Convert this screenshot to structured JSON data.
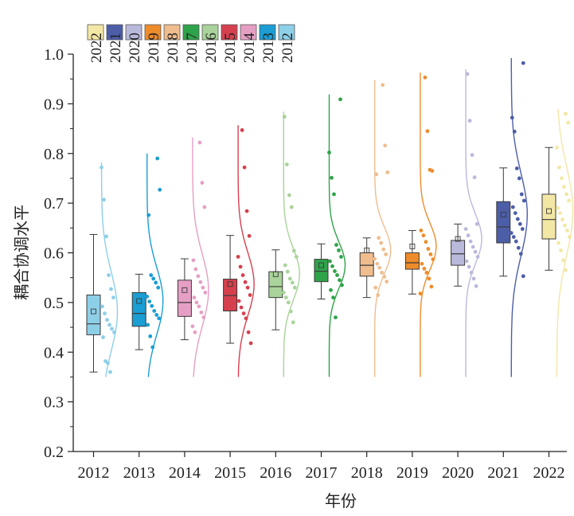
{
  "chart_data": {
    "type": "box",
    "xlabel": "年份",
    "ylabel": "耦合协调水平",
    "ylim": [
      0.2,
      1.0
    ],
    "yticks": [
      "0.2",
      "0.3",
      "0.4",
      "0.5",
      "0.6",
      "0.7",
      "0.8",
      "0.9",
      "1.0"
    ],
    "legend": {
      "placement": "top-left",
      "entries": [
        "2022",
        "2021",
        "2020",
        "2019",
        "2018",
        "2017",
        "2016",
        "2015",
        "2014",
        "2013",
        "2012"
      ]
    },
    "series": [
      {
        "name": "2012",
        "color": "#8ECFE8",
        "min": 0.36,
        "q1": 0.435,
        "median": 0.457,
        "q3": 0.515,
        "max": 0.637,
        "mean": 0.482,
        "points": [
          0.772,
          0.707,
          0.633,
          0.555,
          0.527,
          0.51,
          0.492,
          0.478,
          0.465,
          0.455,
          0.447,
          0.44,
          0.43,
          0.382,
          0.378,
          0.36
        ]
      },
      {
        "name": "2013",
        "color": "#1A9ED4",
        "min": 0.405,
        "q1": 0.452,
        "median": 0.478,
        "q3": 0.52,
        "max": 0.557,
        "mean": 0.503,
        "points": [
          0.79,
          0.727,
          0.676,
          0.555,
          0.548,
          0.54,
          0.53,
          0.512,
          0.502,
          0.493,
          0.483,
          0.475,
          0.468,
          0.455,
          0.432,
          0.41
        ]
      },
      {
        "name": "2014",
        "color": "#E69FC4",
        "min": 0.425,
        "q1": 0.472,
        "median": 0.5,
        "q3": 0.545,
        "max": 0.588,
        "mean": 0.525,
        "points": [
          0.822,
          0.741,
          0.692,
          0.585,
          0.567,
          0.553,
          0.541,
          0.53,
          0.52,
          0.51,
          0.5,
          0.492,
          0.48,
          0.47,
          0.452,
          0.44
        ]
      },
      {
        "name": "2015",
        "color": "#D6404E",
        "min": 0.418,
        "q1": 0.483,
        "median": 0.514,
        "q3": 0.547,
        "max": 0.635,
        "mean": 0.537,
        "points": [
          0.847,
          0.772,
          0.684,
          0.634,
          0.592,
          0.572,
          0.555,
          0.541,
          0.53,
          0.515,
          0.503,
          0.49,
          0.478,
          0.468,
          0.44,
          0.418
        ]
      },
      {
        "name": "2016",
        "color": "#A9D39A",
        "min": 0.445,
        "q1": 0.51,
        "median": 0.532,
        "q3": 0.562,
        "max": 0.606,
        "mean": 0.557,
        "points": [
          0.874,
          0.778,
          0.716,
          0.692,
          0.604,
          0.592,
          0.575,
          0.562,
          0.548,
          0.54,
          0.53,
          0.52,
          0.51,
          0.5,
          0.482,
          0.46
        ]
      },
      {
        "name": "2017",
        "color": "#2FA34A",
        "min": 0.507,
        "q1": 0.542,
        "median": 0.563,
        "q3": 0.587,
        "max": 0.618,
        "mean": 0.575,
        "points": [
          0.909,
          0.802,
          0.751,
          0.718,
          0.616,
          0.605,
          0.592,
          0.583,
          0.573,
          0.563,
          0.555,
          0.545,
          0.535,
          0.525,
          0.51,
          0.47
        ]
      },
      {
        "name": "2018",
        "color": "#EFBD8E",
        "min": 0.51,
        "q1": 0.553,
        "median": 0.575,
        "q3": 0.6,
        "max": 0.63,
        "mean": 0.605,
        "points": [
          0.938,
          0.816,
          0.762,
          0.758,
          0.63,
          0.62,
          0.607,
          0.597,
          0.588,
          0.578,
          0.57,
          0.56,
          0.552,
          0.542,
          0.53,
          0.515
        ]
      },
      {
        "name": "2019",
        "color": "#EE8C2C",
        "min": 0.517,
        "q1": 0.567,
        "median": 0.58,
        "q3": 0.6,
        "max": 0.645,
        "mean": 0.613,
        "points": [
          0.953,
          0.845,
          0.767,
          0.765,
          0.645,
          0.635,
          0.622,
          0.608,
          0.597,
          0.587,
          0.578,
          0.568,
          0.56,
          0.548,
          0.532,
          0.518
        ]
      },
      {
        "name": "2020",
        "color": "#B9B9DC",
        "min": 0.533,
        "q1": 0.575,
        "median": 0.598,
        "q3": 0.625,
        "max": 0.658,
        "mean": 0.628,
        "points": [
          0.96,
          0.866,
          0.797,
          0.752,
          0.658,
          0.648,
          0.635,
          0.623,
          0.612,
          0.602,
          0.592,
          0.583,
          0.572,
          0.56,
          0.548,
          0.533
        ]
      },
      {
        "name": "2021",
        "color": "#4D5EA8",
        "min": 0.553,
        "q1": 0.62,
        "median": 0.652,
        "q3": 0.703,
        "max": 0.771,
        "mean": 0.677,
        "points": [
          0.982,
          0.872,
          0.844,
          0.77,
          0.75,
          0.718,
          0.705,
          0.692,
          0.68,
          0.668,
          0.658,
          0.648,
          0.64,
          0.632,
          0.623,
          0.61,
          0.598,
          0.553
        ]
      },
      {
        "name": "2022",
        "color": "#F3E7A5",
        "min": 0.565,
        "q1": 0.628,
        "median": 0.667,
        "q3": 0.718,
        "max": 0.812,
        "mean": 0.684,
        "points": [
          0.88,
          0.862,
          0.812,
          0.772,
          0.75,
          0.733,
          0.718,
          0.705,
          0.69,
          0.68,
          0.667,
          0.655,
          0.645,
          0.632,
          0.62,
          0.605,
          0.585,
          0.565
        ]
      }
    ]
  }
}
